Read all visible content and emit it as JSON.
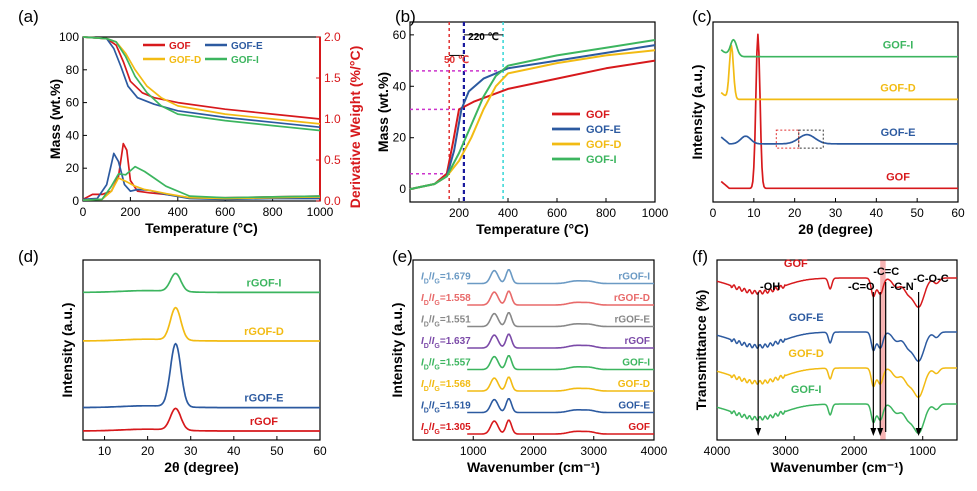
{
  "colors": {
    "GOF": "#d7191c",
    "GOF_E": "#2c5aa0",
    "GOF_D": "#f2bb13",
    "GOF_I": "#3cb55f",
    "axis": "#000000",
    "rightAxis": "#d7191c",
    "hl_pink": "#cc33cc",
    "hl_blue": "#1a1a9e",
    "hl_cyan": "#33d6d6",
    "hl_red": "#e03030",
    "ftir_band": "#f4a0a0"
  },
  "chart_data": [
    {
      "panel": "(a)",
      "type": "line",
      "xlabel": "Temperature (°C)",
      "ylabel": "Mass (wt.%)",
      "y2label": "Derivative Weight (%/°C)",
      "xlim": [
        0,
        1000
      ],
      "ylim": [
        0,
        100
      ],
      "y2lim": [
        0,
        2.0
      ],
      "xticks": [
        "0",
        "200",
        "400",
        "600",
        "800",
        "1000"
      ],
      "yticks": [
        "0",
        "20",
        "40",
        "60",
        "80",
        "100"
      ],
      "y2ticks": [
        "0.0",
        "0.5",
        "1.0",
        "1.5",
        "2.0"
      ],
      "legend": [
        "GOF",
        "GOF-D",
        "GOF-E",
        "GOF-I"
      ],
      "series": [
        {
          "name": "GOF",
          "key": "GOF",
          "axis": "left",
          "x": [
            0,
            100,
            140,
            170,
            200,
            250,
            300,
            400,
            600,
            800,
            1000
          ],
          "y": [
            100,
            99,
            95,
            85,
            73,
            66,
            63,
            60,
            56,
            53,
            50
          ]
        },
        {
          "name": "GOF-E",
          "key": "GOF_E",
          "axis": "left",
          "x": [
            0,
            100,
            130,
            160,
            190,
            230,
            300,
            400,
            600,
            800,
            1000
          ],
          "y": [
            100,
            99,
            93,
            82,
            70,
            63,
            59,
            55,
            51,
            48,
            45
          ]
        },
        {
          "name": "GOF-D",
          "key": "GOF_D",
          "axis": "left",
          "x": [
            0,
            100,
            140,
            180,
            220,
            270,
            330,
            400,
            600,
            800,
            1000
          ],
          "y": [
            100,
            99,
            97,
            90,
            80,
            70,
            63,
            58,
            53,
            50,
            47
          ]
        },
        {
          "name": "GOF-I",
          "key": "GOF_I",
          "axis": "left",
          "x": [
            0,
            100,
            140,
            180,
            220,
            270,
            330,
            400,
            600,
            800,
            1000
          ],
          "y": [
            100,
            99,
            97,
            88,
            76,
            66,
            58,
            53,
            49,
            46,
            43
          ]
        },
        {
          "name": "GOF",
          "key": "GOF",
          "axis": "right",
          "x": [
            0,
            40,
            80,
            120,
            150,
            170,
            185,
            200,
            230,
            280,
            350,
            450,
            600,
            800,
            1000
          ],
          "y": [
            0.02,
            0.08,
            0.08,
            0.12,
            0.3,
            0.7,
            0.62,
            0.25,
            0.12,
            0.1,
            0.08,
            0.04,
            0.04,
            0.05,
            0.06
          ]
        },
        {
          "name": "GOF-E",
          "key": "GOF_E",
          "axis": "right",
          "x": [
            0,
            60,
            100,
            130,
            150,
            175,
            200,
            230,
            280,
            350,
            450,
            600,
            800,
            1000
          ],
          "y": [
            0.02,
            0.03,
            0.2,
            0.58,
            0.48,
            0.2,
            0.12,
            0.14,
            0.13,
            0.08,
            0.03,
            0.02,
            0.03,
            0.03
          ]
        },
        {
          "name": "GOF-D",
          "key": "GOF_D",
          "axis": "right",
          "x": [
            0,
            80,
            120,
            150,
            180,
            220,
            260,
            300,
            350,
            450,
            600,
            800,
            1000
          ],
          "y": [
            0.01,
            0.02,
            0.12,
            0.28,
            0.24,
            0.18,
            0.14,
            0.12,
            0.09,
            0.04,
            0.03,
            0.04,
            0.05
          ]
        },
        {
          "name": "GOF-I",
          "key": "GOF_I",
          "axis": "right",
          "x": [
            0,
            80,
            120,
            150,
            180,
            220,
            260,
            300,
            350,
            450,
            600,
            800,
            1000
          ],
          "y": [
            0.01,
            0.02,
            0.18,
            0.33,
            0.32,
            0.42,
            0.36,
            0.28,
            0.18,
            0.06,
            0.04,
            0.05,
            0.06
          ]
        }
      ]
    },
    {
      "panel": "(b)",
      "type": "line",
      "xlabel": "Temperature (°C)",
      "ylabel": "Mass (wt.%)",
      "xlim": [
        0,
        1000
      ],
      "ylim": [
        -5,
        65
      ],
      "xticks": [
        "200",
        "400",
        "600",
        "800",
        "1000"
      ],
      "yticks": [
        "0",
        "20",
        "40",
        "60"
      ],
      "legend": [
        "GOF",
        "GOF-E",
        "GOF-D",
        "GOF-I"
      ],
      "annotations": [
        "220 ℃",
        "50 ℃"
      ],
      "series": [
        {
          "name": "GOF",
          "key": "GOF",
          "x": [
            0,
            100,
            150,
            175,
            200,
            260,
            400,
            600,
            800,
            1000
          ],
          "y": [
            0,
            2,
            6,
            18,
            31,
            34,
            39,
            43,
            47,
            50
          ]
        },
        {
          "name": "GOF-E",
          "key": "GOF_E",
          "x": [
            0,
            100,
            150,
            180,
            210,
            240,
            300,
            400,
            600,
            800,
            1000
          ],
          "y": [
            0,
            2,
            5,
            15,
            31,
            38,
            43,
            47,
            50,
            53,
            56
          ]
        },
        {
          "name": "GOF-D",
          "key": "GOF_D",
          "x": [
            0,
            100,
            150,
            200,
            250,
            300,
            350,
            400,
            600,
            800,
            1000
          ],
          "y": [
            0,
            2,
            5,
            11,
            20,
            31,
            40,
            45,
            49,
            52,
            54
          ]
        },
        {
          "name": "GOF-I",
          "key": "GOF_I",
          "x": [
            0,
            100,
            150,
            200,
            250,
            300,
            350,
            400,
            600,
            800,
            1000
          ],
          "y": [
            0,
            2,
            5,
            14,
            25,
            36,
            44,
            48,
            52,
            55,
            58
          ]
        }
      ]
    },
    {
      "panel": "(c)",
      "type": "line",
      "xlabel": "2θ (degree)",
      "ylabel": "Intensity (a.u.)",
      "xlim": [
        0,
        60
      ],
      "xticks": [
        "0",
        "10",
        "20",
        "30",
        "40",
        "50",
        "60"
      ],
      "series": [
        {
          "name": "GOF",
          "key": "GOF",
          "label": "GOF",
          "baseline": 0.08
        },
        {
          "name": "GOF-E",
          "key": "GOF_E",
          "label": "GOF-E",
          "baseline": 0.34
        },
        {
          "name": "GOF-D",
          "key": "GOF_D",
          "label": "GOF-D",
          "baseline": 0.6
        },
        {
          "name": "GOF-I",
          "key": "GOF_I",
          "label": "GOF-I",
          "baseline": 0.85
        }
      ]
    },
    {
      "panel": "(d)",
      "type": "line",
      "xlabel": "2θ (degree)",
      "ylabel": "Intensity (a.u.)",
      "xlim": [
        5,
        60
      ],
      "xticks": [
        "10",
        "20",
        "30",
        "40",
        "50",
        "60"
      ],
      "series": [
        {
          "name": "rGOF",
          "key": "GOF",
          "label": "rGOF",
          "baseline": 0.05,
          "peak": 0.12
        },
        {
          "name": "rGOF-E",
          "key": "GOF_E",
          "label": "rGOF-E",
          "baseline": 0.18,
          "peak": 0.35
        },
        {
          "name": "rGOF-D",
          "key": "GOF_D",
          "label": "rGOF-D",
          "baseline": 0.55,
          "peak": 0.18
        },
        {
          "name": "rGOF-I",
          "key": "GOF_I",
          "label": "rGOF-I",
          "baseline": 0.82,
          "peak": 0.1
        }
      ]
    },
    {
      "panel": "(e)",
      "type": "line",
      "xlabel": "Wavenumber (cm⁻¹)",
      "ylabel": "Intensity (a.u.)",
      "xlim": [
        0,
        4000
      ],
      "xticks": [
        "1000",
        "2000",
        "3000",
        "4000"
      ],
      "series": [
        {
          "name": "GOF",
          "label": "GOF",
          "color": "#d7191c",
          "ratio": "1.305"
        },
        {
          "name": "GOF-E",
          "label": "GOF-E",
          "color": "#2c5aa0",
          "ratio": "1.519"
        },
        {
          "name": "GOF-D",
          "label": "GOF-D",
          "color": "#f2bb13",
          "ratio": "1.568"
        },
        {
          "name": "GOF-I",
          "label": "GOF-I",
          "color": "#3cb55f",
          "ratio": "1.557"
        },
        {
          "name": "rGOF",
          "label": "rGOF",
          "color": "#7b4aa8",
          "ratio": "1.637"
        },
        {
          "name": "rGOF-E",
          "label": "rGOF-E",
          "color": "#888888",
          "ratio": "1.551"
        },
        {
          "name": "rGOF-D",
          "label": "rGOF-D",
          "color": "#e86a6a",
          "ratio": "1.558"
        },
        {
          "name": "rGOF-I",
          "label": "rGOF-I",
          "color": "#6b9ac4",
          "ratio": "1.679"
        }
      ]
    },
    {
      "panel": "(f)",
      "type": "line",
      "xlabel": "Wavenumber (cm⁻¹)",
      "ylabel": "Transmittance (%)",
      "xlim": [
        4000,
        500
      ],
      "xticks": [
        "4000",
        "3000",
        "2000",
        "1000"
      ],
      "peak_labels": [
        "-OH",
        "-C=O",
        "-C=C",
        "-C-N",
        "-C-O-C"
      ],
      "series": [
        {
          "name": "GOF",
          "key": "GOF",
          "label": "GOF",
          "baseline": 0.9
        },
        {
          "name": "GOF-E",
          "key": "GOF_E",
          "label": "GOF-E",
          "baseline": 0.6
        },
        {
          "name": "GOF-D",
          "key": "GOF_D",
          "label": "GOF-D",
          "baseline": 0.4
        },
        {
          "name": "GOF-I",
          "key": "GOF_I",
          "label": "GOF-I",
          "baseline": 0.2
        }
      ]
    }
  ]
}
